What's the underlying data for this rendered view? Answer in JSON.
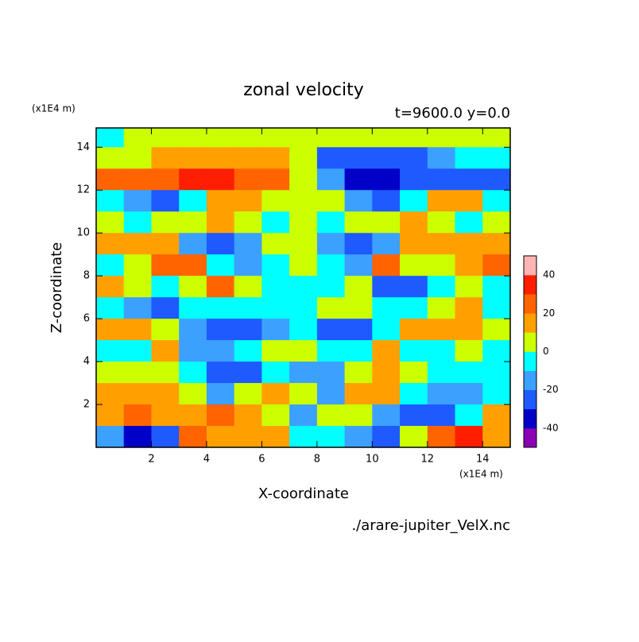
{
  "chart_data": {
    "type": "contour",
    "title": "zonal velocity",
    "subtitle": "t=9600.0 y=0.0",
    "x_unit": "(x1E4 m)",
    "y_unit": "(x1E4 m)",
    "x_label": "X-coordinate",
    "y_label": "Z-coordinate",
    "source": "./arare-jupiter_VelX.nc",
    "xlim": [
      0,
      15
    ],
    "ylim": [
      0,
      14.9
    ],
    "xticks": [
      2,
      4,
      6,
      8,
      10,
      12,
      14
    ],
    "yticks": [
      2,
      4,
      6,
      8,
      10,
      12,
      14
    ],
    "x": [
      0.5,
      1.5,
      2.5,
      3.5,
      4.5,
      5.5,
      6.5,
      7.5,
      8.5,
      9.5,
      10.5,
      11.5,
      12.5,
      13.5,
      14.5
    ],
    "z": [
      14.5,
      13.5,
      12.5,
      11.5,
      10.5,
      9.5,
      8.5,
      7.5,
      6.5,
      5.5,
      4.5,
      3.5,
      2.5,
      1.5,
      0.5
    ],
    "values": [
      [
        -5,
        5,
        5,
        5,
        5,
        5,
        5,
        5,
        5,
        5,
        5,
        5,
        5,
        5,
        5
      ],
      [
        5,
        5,
        15,
        15,
        15,
        15,
        15,
        5,
        -25,
        -25,
        -25,
        -25,
        -15,
        -5,
        -5
      ],
      [
        25,
        25,
        25,
        35,
        35,
        25,
        25,
        5,
        -15,
        -35,
        -35,
        -25,
        -25,
        -25,
        -25
      ],
      [
        -5,
        -15,
        -25,
        -5,
        15,
        15,
        5,
        5,
        5,
        -15,
        -25,
        -5,
        15,
        15,
        -5
      ],
      [
        5,
        -5,
        5,
        5,
        15,
        5,
        -5,
        5,
        -5,
        5,
        5,
        15,
        5,
        -5,
        5
      ],
      [
        15,
        15,
        15,
        -15,
        -25,
        -15,
        5,
        5,
        -15,
        -25,
        -15,
        15,
        15,
        15,
        15
      ],
      [
        -5,
        5,
        25,
        25,
        -5,
        -15,
        -5,
        5,
        -5,
        -15,
        25,
        5,
        5,
        15,
        25
      ],
      [
        15,
        5,
        -5,
        5,
        25,
        5,
        -5,
        -5,
        -5,
        5,
        -25,
        -25,
        -5,
        5,
        -5
      ],
      [
        -5,
        -15,
        -25,
        -5,
        -5,
        -5,
        -5,
        -5,
        5,
        5,
        -5,
        -5,
        5,
        15,
        -5
      ],
      [
        15,
        15,
        5,
        -15,
        -25,
        -25,
        -15,
        -5,
        -25,
        -25,
        -5,
        15,
        15,
        15,
        5
      ],
      [
        -5,
        -5,
        15,
        -15,
        -15,
        -5,
        5,
        5,
        -5,
        -5,
        15,
        -5,
        -5,
        5,
        -5
      ],
      [
        5,
        5,
        5,
        -5,
        -25,
        -25,
        -5,
        -15,
        -15,
        5,
        15,
        5,
        -5,
        -5,
        -5
      ],
      [
        15,
        15,
        15,
        5,
        -15,
        5,
        15,
        5,
        -15,
        15,
        15,
        -5,
        -15,
        -15,
        -5
      ],
      [
        15,
        25,
        15,
        15,
        25,
        15,
        5,
        -15,
        5,
        5,
        -15,
        -25,
        -25,
        -5,
        15
      ],
      [
        -15,
        -35,
        -25,
        25,
        15,
        15,
        15,
        -5,
        -5,
        -15,
        -25,
        5,
        25,
        35,
        15
      ]
    ],
    "colorbar_lim": [
      -50,
      50
    ],
    "colorbar_ticks": [
      -40,
      -20,
      0,
      20,
      40
    ],
    "colors": [
      "#8c00b4",
      "#0000c8",
      "#1e5aff",
      "#3ca0ff",
      "#00ffff",
      "#ccff00",
      "#ffa000",
      "#ff6400",
      "#ff1e00",
      "#ffb4b4"
    ]
  }
}
